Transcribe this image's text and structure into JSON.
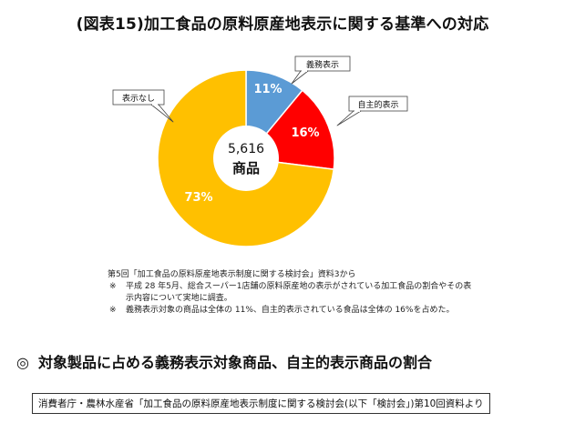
{
  "title": "(図表15)加工食品の原料原産地表示に関する基準への対応",
  "chart_data": {
    "type": "pie",
    "center_label": [
      "5,616",
      "商品"
    ],
    "slices": [
      {
        "label": "義務表示",
        "value": 11,
        "value_label": "11%",
        "color": "#5B9BD5"
      },
      {
        "label": "自主的表示",
        "value": 16,
        "value_label": "16%",
        "color": "#FF0000"
      },
      {
        "label": "表示なし",
        "value": 73,
        "value_label": "73%",
        "color": "#FFC000"
      }
    ]
  },
  "notes": {
    "intro": "第5回「加工食品の原料原産地表示制度に関する検討会」資料3から",
    "items": [
      {
        "mark": "※",
        "text": "平成 28 年5月、総合スーパー1店舗の原料原産地の表示がされている加工食品の割合やその表示内容について実地に調査。"
      },
      {
        "mark": "※",
        "text": "義務表示対象の商品は全体の 11%、自主的表示されている食品は全体の 16%を占めた。"
      }
    ]
  },
  "heading": {
    "symbol": "◎",
    "text": "対象製品に占める義務表示対象商品、自主的表示商品の割合"
  },
  "source": "消費者庁・農林水産省「加工食品の原料原産地表示制度に関する検討会(以下「検討会」)第10回資料より"
}
